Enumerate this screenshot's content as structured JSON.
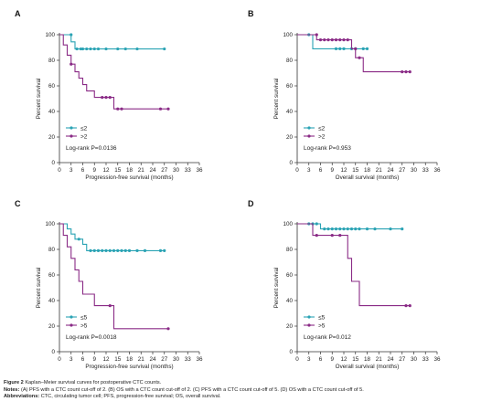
{
  "colors": {
    "low": "#2aa3b4",
    "high": "#8a2b86",
    "axis": "#333333",
    "caption_text": "#222222"
  },
  "chart_data": [
    {
      "type": "line",
      "panel_label": "A",
      "xlabel": "Progression-free survival (months)",
      "ylabel": "Percent survival",
      "xlim": [
        0,
        36
      ],
      "ylim": [
        0,
        100
      ],
      "xticks": [
        0,
        3,
        6,
        9,
        12,
        15,
        18,
        21,
        24,
        27,
        30,
        33,
        36
      ],
      "yticks": [
        0,
        20,
        40,
        60,
        80,
        100
      ],
      "legend_position": "bottom-left",
      "annotation": "Log-rank P=0.0136",
      "series": [
        {
          "name": "≤2",
          "color_key": "low",
          "steps": [
            [
              0,
              100
            ],
            [
              3,
              100
            ],
            [
              3,
              94.4
            ],
            [
              4,
              94.4
            ],
            [
              4,
              88.9
            ],
            [
              27,
              88.9
            ]
          ],
          "censored": [
            [
              3,
              100
            ],
            [
              4.5,
              88.9
            ],
            [
              5.5,
              88.9
            ],
            [
              6,
              88.9
            ],
            [
              7,
              88.9
            ],
            [
              8,
              88.9
            ],
            [
              9,
              88.9
            ],
            [
              10,
              88.9
            ],
            [
              12,
              88.9
            ],
            [
              15,
              88.9
            ],
            [
              17,
              88.9
            ],
            [
              20,
              88.9
            ],
            [
              27,
              88.9
            ]
          ]
        },
        {
          "name": ">2",
          "color_key": "high",
          "steps": [
            [
              0,
              100
            ],
            [
              1,
              100
            ],
            [
              1,
              92
            ],
            [
              2,
              92
            ],
            [
              2,
              84
            ],
            [
              3,
              84
            ],
            [
              3,
              77
            ],
            [
              4,
              77
            ],
            [
              4,
              71
            ],
            [
              5,
              71
            ],
            [
              5,
              66
            ],
            [
              6,
              66
            ],
            [
              6,
              61
            ],
            [
              7,
              61
            ],
            [
              7,
              56
            ],
            [
              9,
              56
            ],
            [
              9,
              51
            ],
            [
              14,
              51
            ],
            [
              14,
              42
            ],
            [
              28,
              42
            ]
          ],
          "censored": [
            [
              3,
              77
            ],
            [
              11,
              51
            ],
            [
              12,
              51
            ],
            [
              13,
              51
            ],
            [
              15,
              42
            ],
            [
              16,
              42
            ],
            [
              26,
              42
            ],
            [
              28,
              42
            ]
          ]
        }
      ]
    },
    {
      "type": "line",
      "panel_label": "B",
      "xlabel": "Overall survival (months)",
      "ylabel": "Percent survival",
      "xlim": [
        0,
        36
      ],
      "ylim": [
        0,
        100
      ],
      "xticks": [
        0,
        3,
        6,
        9,
        12,
        15,
        18,
        21,
        24,
        27,
        30,
        33,
        36
      ],
      "yticks": [
        0,
        20,
        40,
        60,
        80,
        100
      ],
      "legend_position": "bottom-left",
      "annotation": "Log-rank P=0.953",
      "series": [
        {
          "name": "≤2",
          "color_key": "low",
          "steps": [
            [
              0,
              100
            ],
            [
              3,
              100
            ],
            [
              3,
              100
            ],
            [
              4,
              100
            ],
            [
              4,
              89
            ],
            [
              18,
              89
            ]
          ],
          "censored": [
            [
              3,
              100
            ],
            [
              10,
              89
            ],
            [
              11,
              89
            ],
            [
              12,
              89
            ],
            [
              14,
              89
            ],
            [
              15,
              89
            ],
            [
              17,
              89
            ],
            [
              18,
              89
            ]
          ]
        },
        {
          "name": ">2",
          "color_key": "high",
          "steps": [
            [
              0,
              100
            ],
            [
              5,
              100
            ],
            [
              5,
              96
            ],
            [
              14,
              96
            ],
            [
              14,
              89
            ],
            [
              15,
              89
            ],
            [
              15,
              82
            ],
            [
              17,
              82
            ],
            [
              17,
              71
            ],
            [
              29,
              71
            ]
          ],
          "censored": [
            [
              5,
              100
            ],
            [
              6,
              96
            ],
            [
              7,
              96
            ],
            [
              8,
              96
            ],
            [
              9,
              96
            ],
            [
              10,
              96
            ],
            [
              11,
              96
            ],
            [
              12,
              96
            ],
            [
              13,
              96
            ],
            [
              15,
              89
            ],
            [
              16,
              82
            ],
            [
              27,
              71
            ],
            [
              28,
              71
            ],
            [
              29,
              71
            ]
          ]
        }
      ]
    },
    {
      "type": "line",
      "panel_label": "C",
      "xlabel": "Progression-free survival (months)",
      "ylabel": "Percent survival",
      "xlim": [
        0,
        36
      ],
      "ylim": [
        0,
        100
      ],
      "xticks": [
        0,
        3,
        6,
        9,
        12,
        15,
        18,
        21,
        24,
        27,
        30,
        33,
        36
      ],
      "yticks": [
        0,
        20,
        40,
        60,
        80,
        100
      ],
      "legend_position": "bottom-left",
      "annotation": "Log-rank P=0.0018",
      "series": [
        {
          "name": "≤5",
          "color_key": "low",
          "steps": [
            [
              0,
              100
            ],
            [
              2,
              100
            ],
            [
              2,
              96
            ],
            [
              3,
              96
            ],
            [
              3,
              92
            ],
            [
              4,
              92
            ],
            [
              4,
              88
            ],
            [
              6,
              88
            ],
            [
              6,
              84
            ],
            [
              7,
              84
            ],
            [
              7,
              79
            ],
            [
              27,
              79
            ]
          ],
          "censored": [
            [
              5,
              88
            ],
            [
              8,
              79
            ],
            [
              9,
              79
            ],
            [
              10,
              79
            ],
            [
              11,
              79
            ],
            [
              12,
              79
            ],
            [
              13,
              79
            ],
            [
              14,
              79
            ],
            [
              15,
              79
            ],
            [
              16,
              79
            ],
            [
              17,
              79
            ],
            [
              18,
              79
            ],
            [
              20,
              79
            ],
            [
              22,
              79
            ],
            [
              26,
              79
            ],
            [
              27,
              79
            ]
          ]
        },
        {
          "name": ">5",
          "color_key": "high",
          "steps": [
            [
              0,
              100
            ],
            [
              1,
              100
            ],
            [
              1,
              91
            ],
            [
              2,
              91
            ],
            [
              2,
              82
            ],
            [
              3,
              82
            ],
            [
              3,
              73
            ],
            [
              4,
              73
            ],
            [
              4,
              64
            ],
            [
              5,
              64
            ],
            [
              5,
              55
            ],
            [
              6,
              55
            ],
            [
              6,
              45
            ],
            [
              9,
              45
            ],
            [
              9,
              36
            ],
            [
              14,
              36
            ],
            [
              14,
              18
            ],
            [
              28,
              18
            ]
          ],
          "censored": [
            [
              13,
              36
            ],
            [
              28,
              18
            ]
          ]
        }
      ]
    },
    {
      "type": "line",
      "panel_label": "D",
      "xlabel": "Overall survival (months)",
      "ylabel": "Percent survival",
      "xlim": [
        0,
        36
      ],
      "ylim": [
        0,
        100
      ],
      "xticks": [
        0,
        3,
        6,
        9,
        12,
        15,
        18,
        21,
        24,
        27,
        30,
        33,
        36
      ],
      "yticks": [
        0,
        20,
        40,
        60,
        80,
        100
      ],
      "legend_position": "bottom-left",
      "annotation": "Log-rank P=0.012",
      "series": [
        {
          "name": "≤5",
          "color_key": "low",
          "steps": [
            [
              0,
              100
            ],
            [
              6,
              100
            ],
            [
              6,
              96
            ],
            [
              27,
              96
            ]
          ],
          "censored": [
            [
              3,
              100
            ],
            [
              4,
              100
            ],
            [
              5,
              100
            ],
            [
              7,
              96
            ],
            [
              8,
              96
            ],
            [
              9,
              96
            ],
            [
              10,
              96
            ],
            [
              11,
              96
            ],
            [
              12,
              96
            ],
            [
              13,
              96
            ],
            [
              14,
              96
            ],
            [
              15,
              96
            ],
            [
              16,
              96
            ],
            [
              18,
              96
            ],
            [
              20,
              96
            ],
            [
              24,
              96
            ],
            [
              27,
              96
            ]
          ]
        },
        {
          "name": ">5",
          "color_key": "high",
          "steps": [
            [
              0,
              100
            ],
            [
              4,
              100
            ],
            [
              4,
              91
            ],
            [
              13,
              91
            ],
            [
              13,
              73
            ],
            [
              14,
              73
            ],
            [
              14,
              55
            ],
            [
              16,
              55
            ],
            [
              16,
              36
            ],
            [
              29,
              36
            ]
          ],
          "censored": [
            [
              5,
              91
            ],
            [
              9,
              91
            ],
            [
              11,
              91
            ],
            [
              28,
              36
            ],
            [
              29,
              36
            ]
          ]
        }
      ]
    }
  ],
  "caption": {
    "line1_label": "Figure 2",
    "line1_text": " Kaplan–Meier survival curves for postoperative CTC counts.",
    "line2_label": "Notes:",
    "line2_text": " (A) PFS with a CTC count cut-off of 2. (B) OS with a CTC count cut-off of 2. (C) PFS with a CTC count cut-off of 5. (D) OS with a CTC count cut-off of 5.",
    "line3_label": "Abbreviations:",
    "line3_text": " CTC, circulating tumor cell; PFS, progression-free survival; OS, overall survival."
  }
}
